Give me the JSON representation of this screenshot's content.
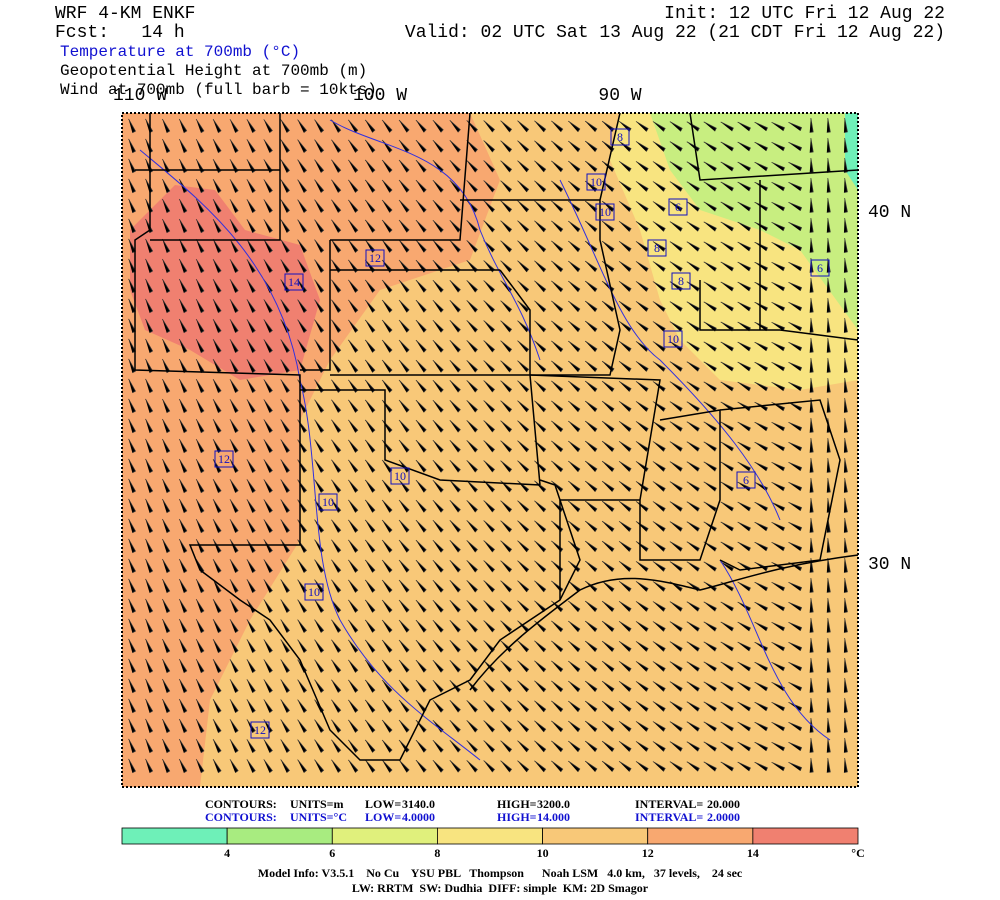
{
  "header": {
    "model": "WRF 4-KM ENKF",
    "forecast": "Fcst:   14 h",
    "fields": [
      "Temperature at 700mb (°C)",
      "Geopotential Height at 700mb (m)",
      "Wind at 700mb (full barb = 10kts)"
    ],
    "init": "Init: 12 UTC Fri 12 Aug 22",
    "valid": "Valid: 02 UTC Sat 13 Aug 22 (21 CDT Fri 12 Aug 22)"
  },
  "map": {
    "longitude_labels": [
      "110 W",
      "100 W",
      "90 W"
    ],
    "latitude_labels": [
      "40 N",
      "30 N"
    ],
    "contour_labels": [
      8,
      10,
      10,
      6,
      8,
      8,
      12,
      14,
      10,
      6,
      12,
      10,
      6,
      10,
      10,
      12
    ]
  },
  "contours": [
    {
      "label": "CONTOURS:",
      "units": "UNITS=m",
      "low_label": "LOW=",
      "low": "3140.0",
      "high_label": "HIGH=",
      "high": "3200.0",
      "interval_label": "INTERVAL=",
      "interval": "20.000"
    },
    {
      "label": "CONTOURS:",
      "units": "UNITS=°C",
      "low_label": "LOW=",
      "low": "4.0000",
      "high_label": "HIGH=",
      "high": "14.000",
      "interval_label": "INTERVAL=",
      "interval": "2.0000"
    }
  ],
  "colorbar": {
    "colors": [
      "#6ef0b8",
      "#a8ec80",
      "#e0f07c",
      "#f8e480",
      "#f8c878",
      "#f8a870",
      "#f08070"
    ],
    "ticks": [
      4,
      6,
      8,
      10,
      12,
      14
    ],
    "unit": "°C"
  },
  "footer": [
    "Model Info: V3.5.1    No Cu    YSU PBL   Thompson      Noah LSM   4.0 km,   37 levels,    24 sec",
    "LW: RRTM  SW: Dudhia  DIFF: simple  KM: 2D Smagor"
  ]
}
